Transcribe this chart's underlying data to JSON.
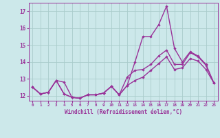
{
  "xlabel": "Windchill (Refroidissement éolien,°C)",
  "x": [
    0,
    1,
    2,
    3,
    4,
    5,
    6,
    7,
    8,
    9,
    10,
    11,
    12,
    13,
    14,
    15,
    16,
    17,
    18,
    19,
    20,
    21,
    22,
    23
  ],
  "line_top": [
    12.5,
    12.1,
    12.2,
    12.9,
    12.8,
    11.9,
    11.85,
    12.05,
    12.05,
    12.15,
    12.55,
    12.05,
    12.6,
    14.0,
    15.5,
    15.5,
    16.2,
    17.3,
    14.8,
    14.0,
    14.6,
    14.35,
    13.85,
    12.75
  ],
  "line_mid": [
    12.5,
    12.1,
    12.2,
    12.9,
    12.1,
    11.9,
    11.85,
    12.05,
    12.05,
    12.15,
    12.55,
    12.05,
    13.1,
    13.5,
    13.55,
    13.85,
    14.35,
    14.7,
    13.85,
    13.85,
    14.55,
    14.3,
    13.8,
    12.75
  ],
  "line_bot": [
    12.5,
    12.1,
    12.2,
    12.9,
    12.1,
    11.9,
    11.85,
    12.05,
    12.05,
    12.15,
    12.55,
    12.05,
    12.6,
    12.9,
    13.1,
    13.5,
    13.9,
    14.3,
    13.55,
    13.65,
    14.2,
    14.05,
    13.55,
    12.75
  ],
  "ylim": [
    11.7,
    17.5
  ],
  "yticks": [
    12,
    13,
    14,
    15,
    16,
    17
  ],
  "bg_color": "#cce8ea",
  "grid_color": "#aacccc",
  "line_color": "#993399",
  "marker": "D",
  "marker_size": 2.2,
  "line_width": 1.0
}
